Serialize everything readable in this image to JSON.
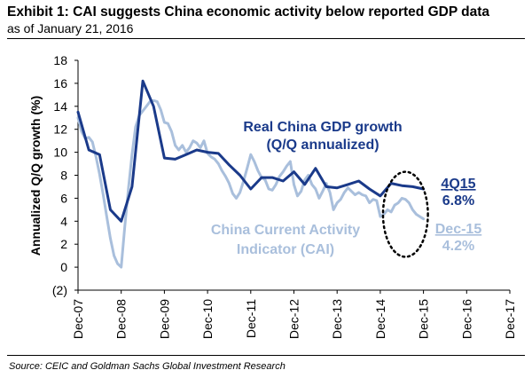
{
  "exhibit": {
    "title": "Exhibit 1: CAI suggests China economic activity below reported GDP data",
    "subtitle": "as of January 21, 2016",
    "source": "Source: CEIC and Goldman Sachs Global Investment Research"
  },
  "colors": {
    "gdp": "#1a3a8a",
    "cai": "#a9bfdc",
    "axis": "#000000"
  },
  "chart_data": {
    "type": "line",
    "title": "CAI suggests China economic activity below reported GDP data",
    "ylabel": "Annualized Q/Q growth (%)",
    "xlabel": "",
    "ylim": [
      -2,
      18
    ],
    "xlim": [
      2007.917,
      2017.917
    ],
    "y_ticks": [
      -2,
      0,
      2,
      4,
      6,
      8,
      10,
      12,
      14,
      16,
      18
    ],
    "y_tick_labels": [
      "(2)",
      "0",
      "2",
      "4",
      "6",
      "8",
      "10",
      "12",
      "14",
      "16",
      "18"
    ],
    "x_ticks": [
      2007.917,
      2008.917,
      2009.917,
      2010.917,
      2011.917,
      2012.917,
      2013.917,
      2014.917,
      2015.917,
      2016.917,
      2017.917
    ],
    "x_tick_labels": [
      "Dec-07",
      "Dec-08",
      "Dec-09",
      "Dec-10",
      "Dec-11",
      "Dec-12",
      "Dec-13",
      "Dec-14",
      "Dec-15",
      "Dec-16",
      "Dec-17"
    ],
    "series": [
      {
        "name": "Real China GDP growth (Q/Q annualized)",
        "x": [
          2007.917,
          2008.167,
          2008.417,
          2008.667,
          2008.917,
          2009.167,
          2009.417,
          2009.667,
          2009.917,
          2010.167,
          2010.417,
          2010.667,
          2010.917,
          2011.167,
          2011.417,
          2011.667,
          2011.917,
          2012.167,
          2012.417,
          2012.667,
          2012.917,
          2013.167,
          2013.417,
          2013.667,
          2013.917,
          2014.167,
          2014.417,
          2014.667,
          2014.917,
          2015.167,
          2015.417,
          2015.667,
          2015.917
        ],
        "values": [
          13.5,
          10.2,
          9.8,
          5.0,
          4.0,
          7.0,
          16.2,
          14.0,
          9.5,
          9.4,
          9.8,
          10.2,
          10.0,
          9.9,
          8.9,
          8.0,
          6.8,
          7.8,
          7.8,
          7.5,
          8.3,
          7.2,
          8.6,
          7.0,
          6.9,
          7.2,
          7.5,
          6.8,
          6.2,
          7.3,
          7.1,
          7.0,
          6.8
        ]
      },
      {
        "name": "China Current Activity Indicator (CAI)",
        "x": [
          2007.917,
          2008.0,
          2008.083,
          2008.167,
          2008.25,
          2008.333,
          2008.417,
          2008.5,
          2008.583,
          2008.667,
          2008.75,
          2008.833,
          2008.917,
          2009.0,
          2009.083,
          2009.167,
          2009.25,
          2009.333,
          2009.417,
          2009.5,
          2009.583,
          2009.667,
          2009.75,
          2009.833,
          2009.917,
          2010.0,
          2010.083,
          2010.167,
          2010.25,
          2010.333,
          2010.417,
          2010.5,
          2010.583,
          2010.667,
          2010.75,
          2010.833,
          2010.917,
          2011.0,
          2011.083,
          2011.167,
          2011.25,
          2011.333,
          2011.417,
          2011.5,
          2011.583,
          2011.667,
          2011.75,
          2011.833,
          2011.917,
          2012.0,
          2012.083,
          2012.167,
          2012.25,
          2012.333,
          2012.417,
          2012.5,
          2012.583,
          2012.667,
          2012.75,
          2012.833,
          2012.917,
          2013.0,
          2013.083,
          2013.167,
          2013.25,
          2013.333,
          2013.417,
          2013.5,
          2013.583,
          2013.667,
          2013.75,
          2013.833,
          2013.917,
          2014.0,
          2014.083,
          2014.167,
          2014.25,
          2014.333,
          2014.417,
          2014.5,
          2014.583,
          2014.667,
          2014.75,
          2014.833,
          2014.917,
          2015.0,
          2015.083,
          2015.167,
          2015.25,
          2015.333,
          2015.417,
          2015.5,
          2015.583,
          2015.667,
          2015.75,
          2015.833,
          2015.917
        ],
        "values": [
          13.0,
          11.8,
          11.2,
          11.3,
          10.9,
          9.6,
          8.1,
          6.3,
          4.4,
          2.5,
          1.0,
          0.3,
          0.0,
          3.5,
          6.8,
          9.8,
          12.2,
          13.2,
          13.6,
          14.0,
          14.4,
          14.5,
          14.4,
          13.7,
          12.6,
          12.5,
          11.8,
          10.6,
          10.2,
          10.6,
          10.0,
          10.4,
          11.0,
          10.8,
          10.4,
          11.0,
          9.9,
          9.6,
          9.4,
          9.0,
          8.4,
          7.9,
          7.3,
          6.4,
          6.0,
          6.5,
          7.5,
          8.6,
          9.8,
          9.2,
          8.4,
          7.8,
          7.6,
          6.8,
          6.7,
          7.2,
          7.9,
          8.3,
          8.8,
          9.2,
          7.2,
          6.2,
          6.6,
          7.6,
          8.0,
          7.2,
          6.8,
          6.0,
          6.6,
          7.3,
          6.5,
          5.0,
          5.6,
          5.9,
          6.5,
          6.9,
          6.6,
          6.3,
          6.5,
          6.3,
          6.2,
          5.6,
          5.9,
          5.8,
          4.4,
          4.6,
          5.0,
          4.8,
          5.4,
          5.6,
          6.0,
          5.9,
          5.6,
          5.0,
          4.6,
          4.4,
          4.2
        ]
      }
    ],
    "annotations": {
      "gdp_label_line1": "Real China GDP growth",
      "gdp_label_line2": "(Q/Q annualized)",
      "cai_label_line1": "China Current Activity",
      "cai_label_line2": "Indicator (CAI)",
      "gdp_period": "4Q15",
      "gdp_value": "6.8%",
      "cai_period": "Dec-15",
      "cai_value": "4.2%"
    },
    "highlight": {
      "cx": 2015.5,
      "cy": 4.6,
      "rx_years": 0.52,
      "ry_units": 3.7
    }
  }
}
